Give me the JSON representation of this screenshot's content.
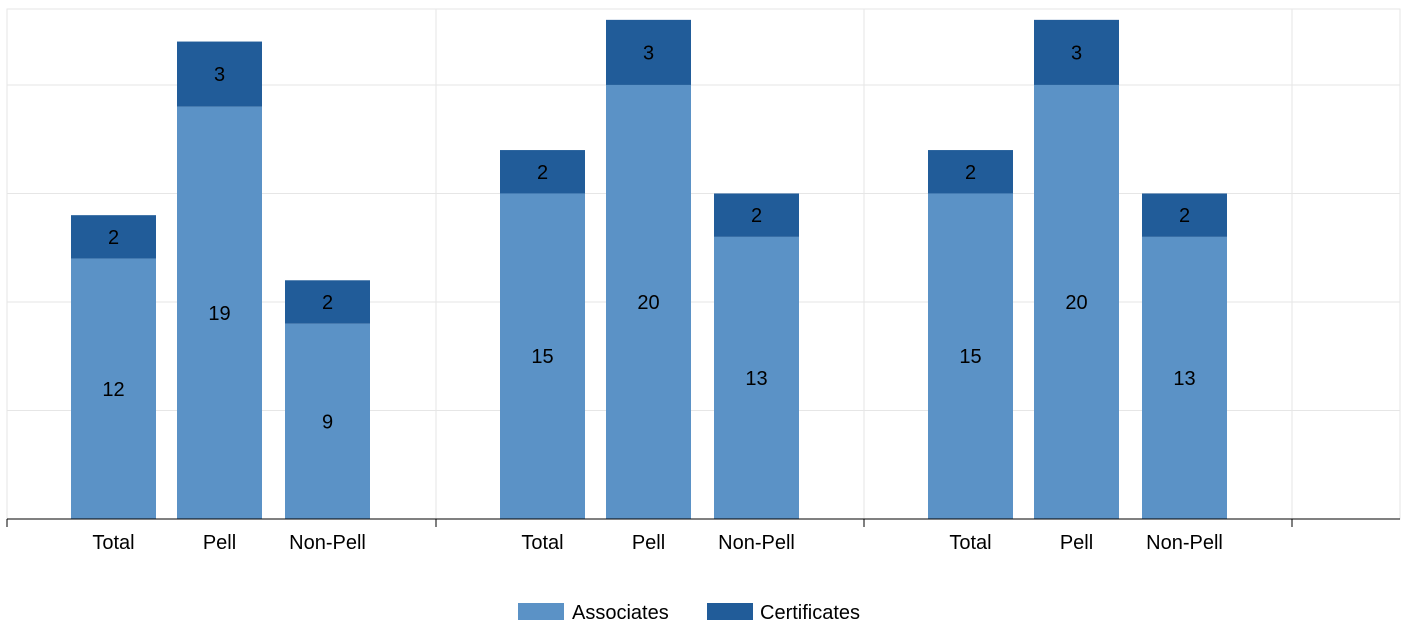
{
  "chart_data": {
    "type": "bar",
    "stacked": true,
    "groups": [
      {
        "categories": [
          "Total",
          "Pell",
          "Non-Pell"
        ]
      },
      {
        "categories": [
          "Total",
          "Pell",
          "Non-Pell"
        ]
      },
      {
        "categories": [
          "Total",
          "Pell",
          "Non-Pell"
        ]
      }
    ],
    "series": [
      {
        "name": "Associates",
        "color": "#5b92c6",
        "values": [
          [
            12,
            19,
            9
          ],
          [
            15,
            20,
            13
          ],
          [
            15,
            20,
            13
          ]
        ]
      },
      {
        "name": "Certificates",
        "color": "#215c99",
        "values": [
          [
            2,
            3,
            2
          ],
          [
            2,
            3,
            2
          ],
          [
            2,
            3,
            2
          ]
        ]
      }
    ],
    "ylim": [
      0,
      23.5
    ],
    "grid": true,
    "legend": "bottom",
    "title": "",
    "xlabel": "",
    "ylabel": ""
  }
}
